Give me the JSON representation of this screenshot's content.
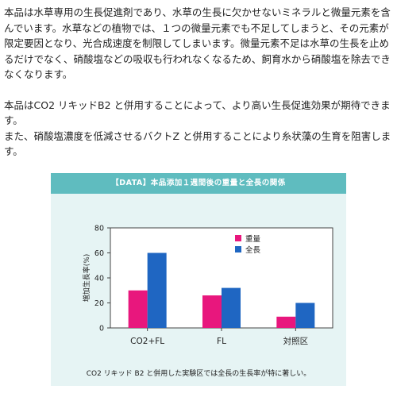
{
  "description": {
    "para1": "本品は水草専用の生長促進剤であり、水草の生長に欠かせないミネラルと微量元素を含んでいます。水草などの植物では、１つの微量元素でも不足してしまうと、その元素が限定要因となり、光合成速度を制限してしまいます。微量元素不足は水草の生長を止めるだけでなく、硝酸塩などの吸収も行われなくなるため、飼育水から硝酸塩を除去できなくなります。",
    "para2": "本品はCO2 リキッドB2 と併用することによって、より高い生長促進効果が期待できます。",
    "para3": "また、硝酸塩濃度を低減させるバクトZ と併用することにより糸状藻の生育を阻害します。"
  },
  "colors": {
    "weight": "#e8177d",
    "length": "#1f66c2",
    "banner": "#5fbcbf",
    "panel": "#e6f4f4"
  },
  "chart_data": {
    "type": "bar",
    "title": "【DATA】本品添加１週間後の重量と全長の関係",
    "categories": [
      "CO2+FL",
      "FL",
      "対照区"
    ],
    "series": [
      {
        "name": "重量",
        "values": [
          30,
          26,
          9
        ]
      },
      {
        "name": "全長",
        "values": [
          60,
          32,
          20
        ]
      }
    ],
    "ylabel": "増加生長率(%)",
    "xlabel": "",
    "ylim": [
      0,
      80
    ],
    "yticks": [
      "0",
      "20",
      "40",
      "60",
      "80"
    ],
    "grid": false,
    "legend": "top-right"
  },
  "caption": "CO2 リキッド B2 と併用した実験区では全長の生長率が特に著しい。"
}
